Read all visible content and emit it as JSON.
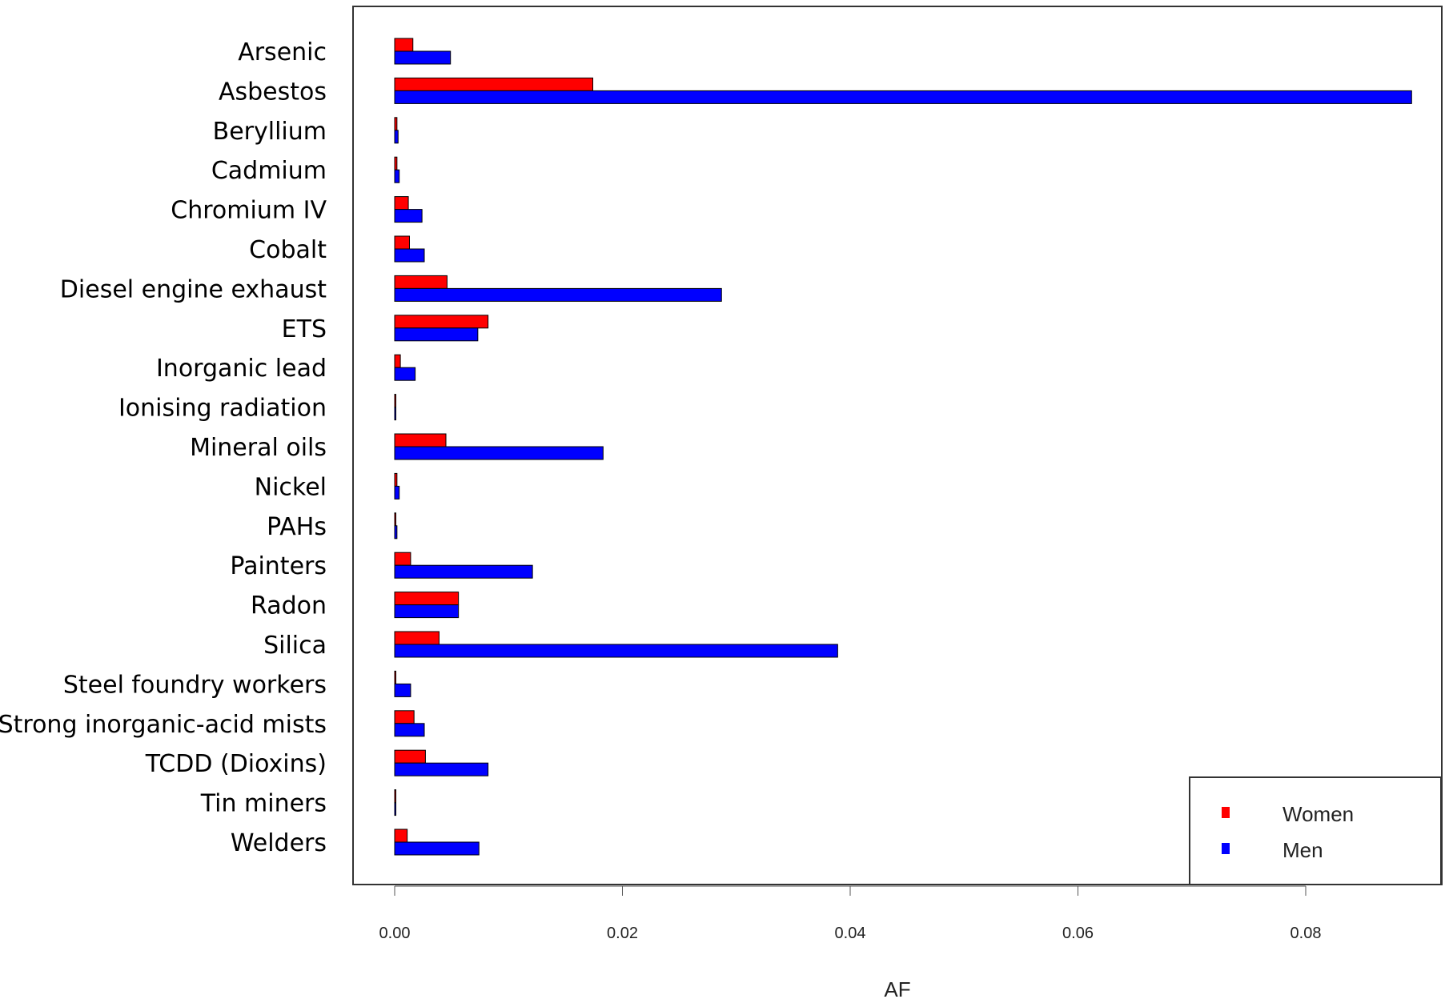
{
  "chart_data": {
    "type": "bar",
    "orientation": "horizontal",
    "title": "",
    "xlabel": "AF",
    "ylabel": "",
    "xlim": [
      0,
      0.093
    ],
    "xticks": [
      "0.00",
      "0.02",
      "0.04",
      "0.06",
      "0.08"
    ],
    "xtick_values": [
      0,
      0.02,
      0.04,
      0.06,
      0.08
    ],
    "grid": false,
    "legend_position": "bottom-right",
    "categories": [
      "Arsenic",
      "Asbestos",
      "Beryllium",
      "Cadmium",
      "Chromium IV",
      "Cobalt",
      "Diesel engine exhaust",
      "ETS",
      "Inorganic lead",
      "Ionising radiation",
      "Mineral oils",
      "Nickel",
      "PAHs",
      "Painters",
      "Radon",
      "Silica",
      "Steel foundry workers",
      "Strong inorganic-acid mists",
      "TCDD (Dioxins)",
      "Tin miners",
      "Welders"
    ],
    "series": [
      {
        "name": "Women",
        "color": "#ff0000",
        "values": [
          0.0016,
          0.0174,
          0.0002,
          0.0002,
          0.0012,
          0.0013,
          0.0046,
          0.0082,
          0.0005,
          0.0001,
          0.0045,
          0.0002,
          0.0001,
          0.0014,
          0.0056,
          0.0039,
          0.0001,
          0.0017,
          0.0027,
          0.0001,
          0.0011
        ]
      },
      {
        "name": "Men",
        "color": "#0000ff",
        "values": [
          0.0049,
          0.0893,
          0.0003,
          0.0004,
          0.0024,
          0.0026,
          0.0287,
          0.0073,
          0.0018,
          0.0001,
          0.0183,
          0.0004,
          0.0002,
          0.0121,
          0.0056,
          0.0389,
          0.0014,
          0.0026,
          0.0082,
          0.0001,
          0.0074
        ]
      }
    ]
  }
}
